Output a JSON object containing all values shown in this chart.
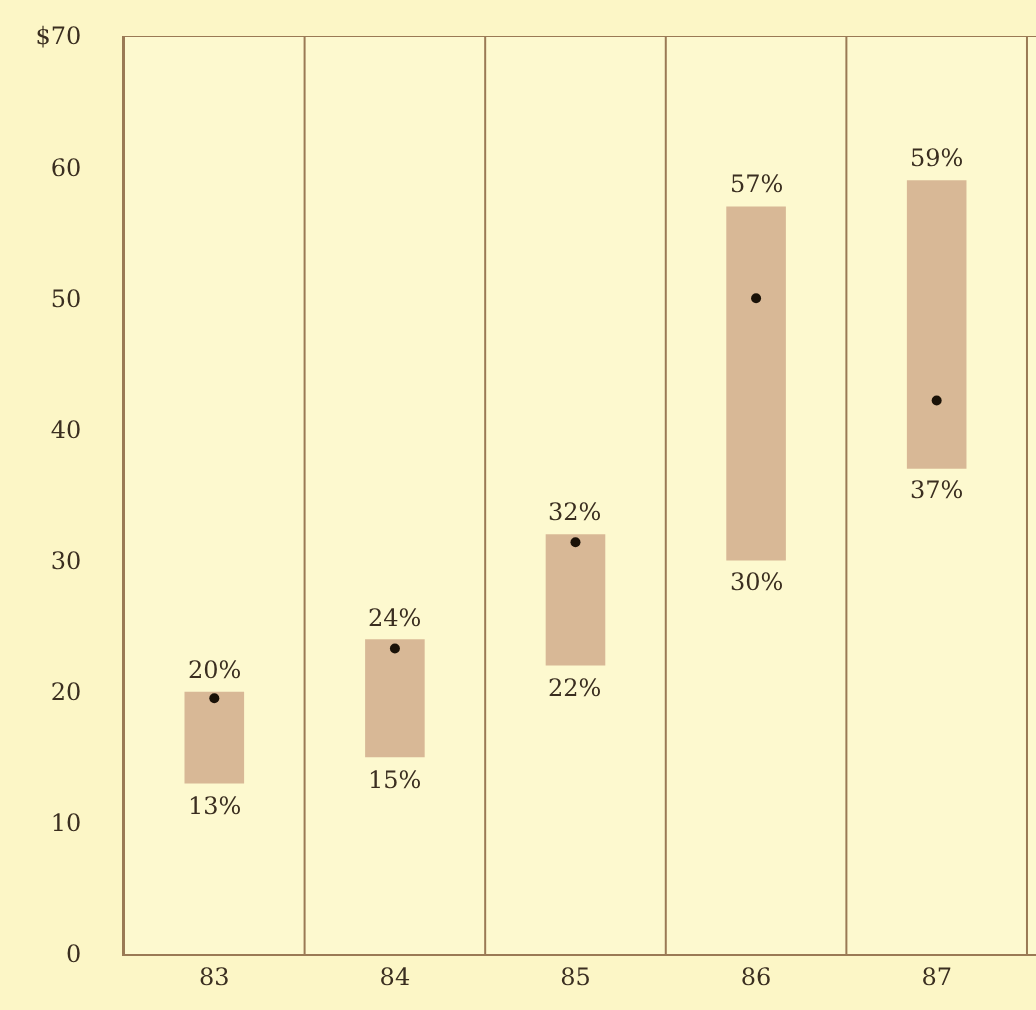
{
  "chart_data": {
    "type": "bar",
    "categories": [
      "83",
      "84",
      "85",
      "86",
      "87"
    ],
    "series": [
      {
        "color": "#d8b896",
        "base": [
          13,
          15,
          22,
          30,
          37
        ],
        "values": [
          7,
          9,
          10,
          27,
          22
        ]
      },
      {
        "type": "scatter",
        "color": "#1a1208",
        "marker": "circle",
        "x": [
          "83",
          "84",
          "85",
          "86",
          "87"
        ],
        "values": [
          19.5,
          23.3,
          31.4,
          50.0,
          42.2
        ]
      }
    ],
    "ylim": [
      0,
      70
    ],
    "yticks": [
      0,
      10,
      20,
      30,
      40,
      50,
      {
        "value": 70,
        "label": "$70"
      },
      60
    ],
    "grid": "x",
    "annotations": [
      {
        "text": "20%",
        "x": "83",
        "y": 20
      },
      {
        "text": "13%",
        "x": "83",
        "y": 13
      },
      {
        "text": "24%",
        "x": "84",
        "y": 24
      },
      {
        "text": "15%",
        "x": "84",
        "y": 15
      },
      {
        "text": "32%",
        "x": "85",
        "y": 32
      },
      {
        "text": "22%",
        "x": "85",
        "y": 22
      },
      {
        "text": "57%",
        "x": "86",
        "y": 57
      },
      {
        "text": "30%",
        "x": "86",
        "y": 30
      },
      {
        "text": "59%",
        "x": "87",
        "y": 59
      },
      {
        "text": "37%",
        "x": "87",
        "y": 37
      }
    ]
  }
}
